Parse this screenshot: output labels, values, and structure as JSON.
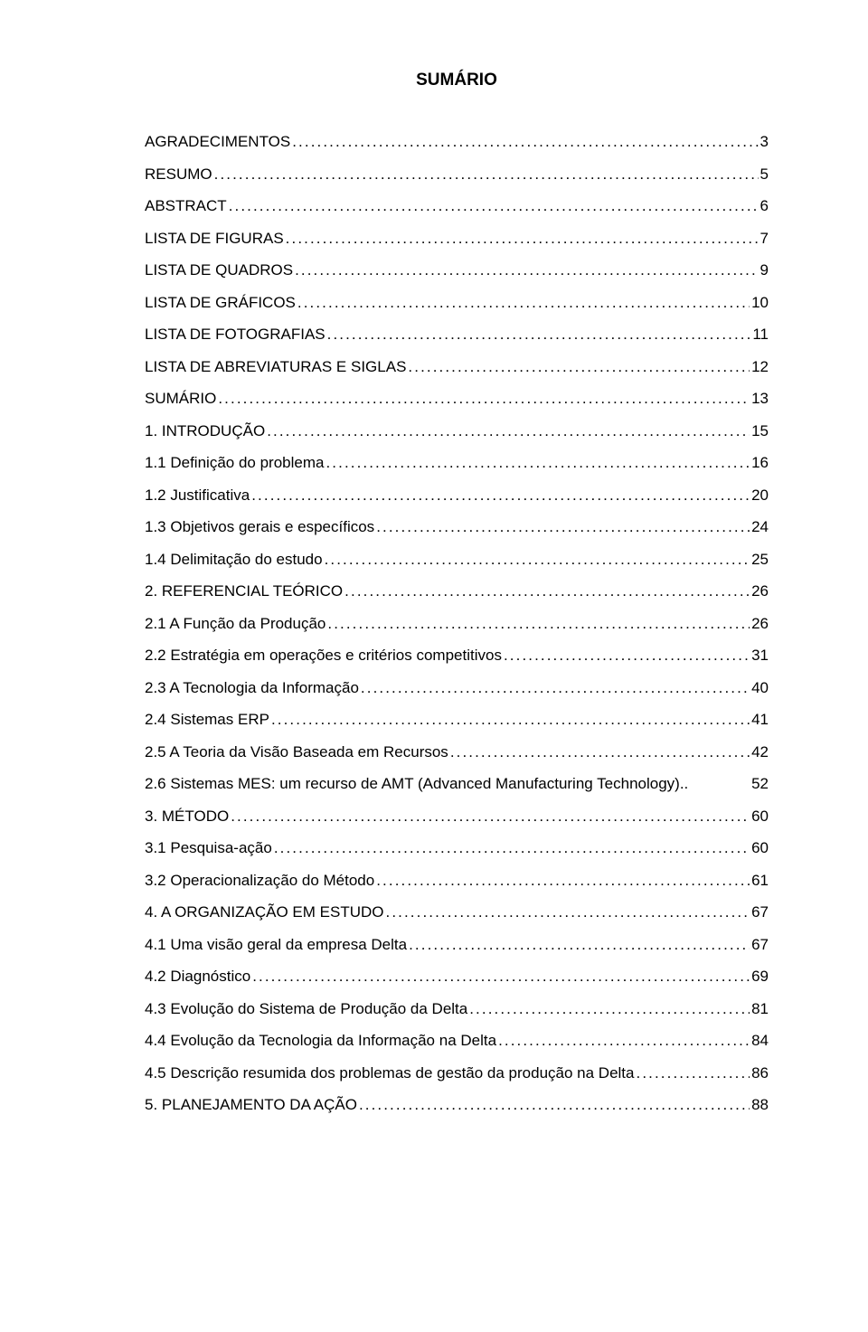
{
  "title": "SUMÁRIO",
  "typography": {
    "font_family": "Arial",
    "title_fontsize_pt": 14,
    "title_fontweight": "bold",
    "entry_fontsize_pt": 12,
    "text_color": "#000000",
    "background_color": "#ffffff"
  },
  "entries": [
    {
      "label": "AGRADECIMENTOS",
      "page": "3"
    },
    {
      "label": "RESUMO",
      "page": "5"
    },
    {
      "label": "ABSTRACT",
      "page": "6"
    },
    {
      "label": "LISTA DE FIGURAS",
      "page": "7"
    },
    {
      "label": "LISTA DE QUADROS",
      "page": "9"
    },
    {
      "label": "LISTA DE GRÁFICOS",
      "page": "10"
    },
    {
      "label": "LISTA DE FOTOGRAFIAS",
      "page": "11"
    },
    {
      "label": "LISTA DE ABREVIATURAS E SIGLAS",
      "page": "12"
    },
    {
      "label": "SUMÁRIO",
      "page": "13"
    },
    {
      "label": "1. INTRODUÇÃO",
      "page": "15"
    },
    {
      "label": "1.1 Definição do problema",
      "page": "16"
    },
    {
      "label": "1.2 Justificativa",
      "page": "20"
    },
    {
      "label": "1.3 Objetivos gerais e específicos",
      "page": "24"
    },
    {
      "label": "1.4 Delimitação do estudo",
      "page": "25"
    },
    {
      "label": "2. REFERENCIAL TEÓRICO",
      "page": "26"
    },
    {
      "label": "2.1 A Função da Produção",
      "page": "26"
    },
    {
      "label": "2.2 Estratégia em operações e critérios competitivos",
      "page": "31"
    },
    {
      "label": "2.3 A Tecnologia da Informação",
      "page": "40"
    },
    {
      "label": "2.4 Sistemas ERP",
      "page": "41"
    },
    {
      "label": "2.5 A Teoria da Visão Baseada em Recursos",
      "page": "42"
    },
    {
      "label": "2.6 Sistemas MES: um recurso de AMT (Advanced Manufacturing Technology)",
      "page": "52",
      "no_dots": true
    },
    {
      "label": "3. MÉTODO",
      "page": "60"
    },
    {
      "label": "3.1 Pesquisa-ação",
      "page": "60"
    },
    {
      "label": "3.2 Operacionalização do Método",
      "page": "61"
    },
    {
      "label": "4. A ORGANIZAÇÃO EM ESTUDO",
      "page": "67"
    },
    {
      "label": "4.1 Uma visão geral da empresa Delta",
      "page": "67"
    },
    {
      "label": "4.2 Diagnóstico",
      "page": "69"
    },
    {
      "label": "4.3 Evolução do Sistema de Produção da Delta",
      "page": "81"
    },
    {
      "label": "4.4 Evolução da Tecnologia da Informação na Delta",
      "page": "84"
    },
    {
      "label": "4.5 Descrição resumida dos problemas de gestão da produção na Delta",
      "page": "86"
    },
    {
      "label": "5. PLANEJAMENTO DA AÇÃO",
      "page": "88"
    }
  ]
}
